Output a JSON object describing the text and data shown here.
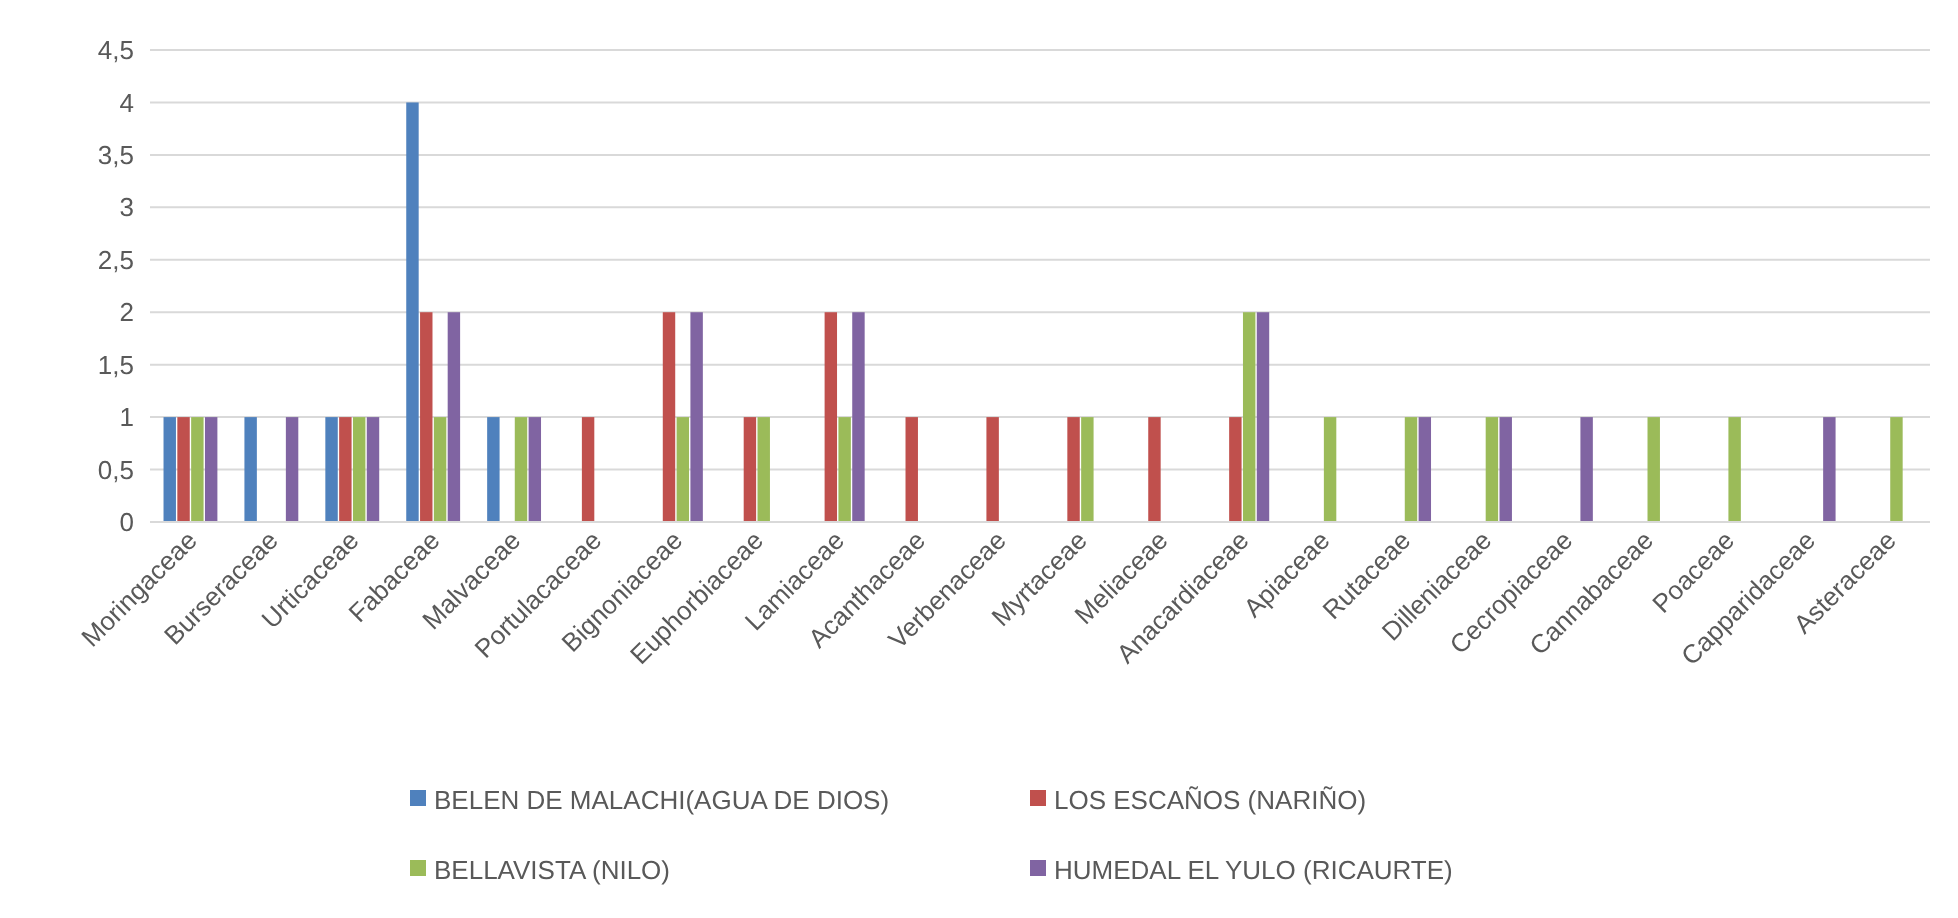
{
  "chart_data": {
    "type": "bar",
    "categories": [
      "Moringaceae",
      "Burseraceae",
      "Urticaceae",
      "Fabaceae",
      "Malvaceae",
      "Portulacaceae",
      "Bignoniaceae",
      "Euphorbiaceae",
      "Lamiaceae",
      "Acanthaceae",
      "Verbenaceae",
      "Myrtaceae",
      "Meliaceae",
      "Anacardiaceae",
      "Apiaceae",
      "Rutaceae",
      "Dilleniaceae",
      "Cecropiaceae",
      "Cannabaceae",
      "Poaceae",
      "Capparidaceae",
      "Asteraceae"
    ],
    "series": [
      {
        "name": "BELEN DE MALACHI(AGUA DE DIOS)",
        "color": "#4f81bd",
        "values": [
          1,
          1,
          1,
          4,
          1,
          0,
          0,
          0,
          0,
          0,
          0,
          0,
          0,
          0,
          0,
          0,
          0,
          0,
          0,
          0,
          0,
          0
        ]
      },
      {
        "name": "LOS ESCAÑOS (NARIÑO)",
        "color": "#c0504d",
        "values": [
          1,
          0,
          1,
          2,
          0,
          1,
          2,
          1,
          2,
          1,
          1,
          1,
          1,
          1,
          0,
          0,
          0,
          0,
          0,
          0,
          0,
          0
        ]
      },
      {
        "name": "BELLAVISTA (NILO)",
        "color": "#9bbb59",
        "values": [
          1,
          0,
          1,
          1,
          1,
          0,
          1,
          1,
          1,
          0,
          0,
          1,
          0,
          2,
          1,
          1,
          1,
          0,
          1,
          1,
          0,
          1
        ]
      },
      {
        "name": "HUMEDAL EL YULO (RICAURTE)",
        "color": "#8064a2",
        "values": [
          1,
          1,
          1,
          2,
          1,
          0,
          2,
          0,
          2,
          0,
          0,
          0,
          0,
          2,
          0,
          1,
          1,
          1,
          0,
          0,
          1,
          0
        ]
      }
    ],
    "ylim": [
      0,
      4.5
    ],
    "yticks": [
      0,
      {
        "value": 0.5,
        "label": "0,5"
      },
      1,
      {
        "value": 1.5,
        "label": "1,5"
      },
      2,
      {
        "value": 2.5,
        "label": "2,5"
      },
      3,
      {
        "value": 3.5,
        "label": "3,5"
      },
      4,
      {
        "value": 4.5,
        "label": "4,5"
      }
    ],
    "grid": "y",
    "legend": "bottom"
  }
}
